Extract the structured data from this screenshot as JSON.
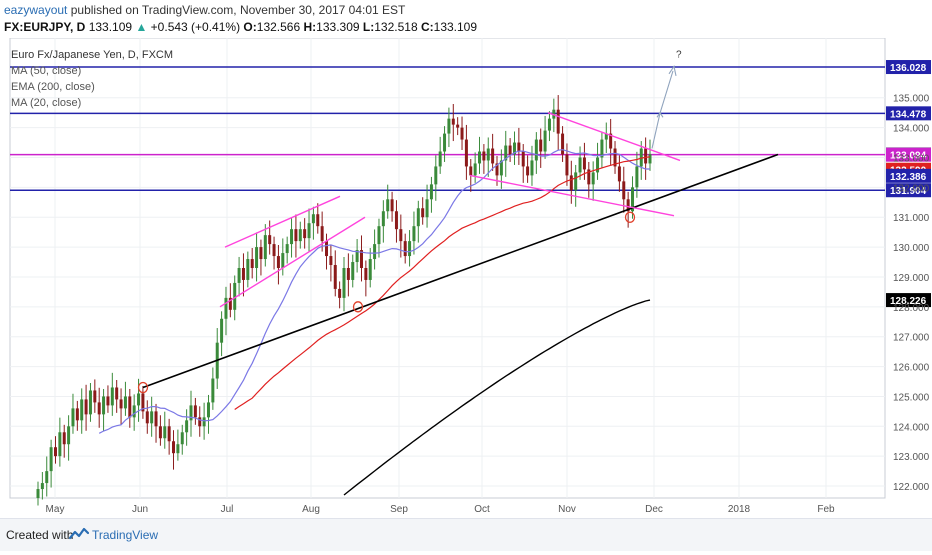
{
  "header": {
    "author": "eazywayout",
    "published": "published on TradingView.com, November 30, 2017 04:01 EST",
    "symbol": "FX:EURJPY, D",
    "last": "133.109",
    "change": "+0.543 (+0.41%)",
    "open_label": "O:",
    "open": "132.566",
    "high_label": "H:",
    "high": "133.309",
    "low_label": "L:",
    "low": "132.518",
    "close_label": "C:",
    "close": "133.109"
  },
  "legend": {
    "title": "Euro Fx/Japanese Yen, D, FXCM",
    "items": [
      "MA (50, close)",
      "EMA (200, close)",
      "MA (20, close)"
    ]
  },
  "annotation": {
    "question": "?"
  },
  "footer": {
    "created": "Created with",
    "brand": "TradingView"
  },
  "colors": {
    "up": "#3a8a3a",
    "down": "#8b1a1a",
    "ma50": "#e02020",
    "ema200": "#000000",
    "ma20": "#7b78e6",
    "hline_blue": "#2222aa",
    "hline_magenta": "#cc22cc",
    "pattern": "#ff44dd",
    "trendline": "#000000"
  },
  "chart_data": {
    "type": "candlestick",
    "title": "Euro Fx/Japanese Yen, D, FXCM",
    "y_range": [
      121.6,
      137.0
    ],
    "y_ticks": [
      "122.000",
      "123.000",
      "124.000",
      "125.000",
      "126.000",
      "127.000",
      "128.000",
      "129.000",
      "130.000",
      "131.000",
      "132.000",
      "133.000",
      "134.000",
      "135.000"
    ],
    "x_ticks": [
      "May",
      "Jun",
      "Jul",
      "Aug",
      "Sep",
      "Oct",
      "Nov",
      "Dec",
      "2018",
      "Feb"
    ],
    "price_labels": [
      {
        "value": 136.028,
        "label": "136.028",
        "color": "#2222aa"
      },
      {
        "value": 134.478,
        "label": "134.478",
        "color": "#2222aa"
      },
      {
        "value": 133.109,
        "label": "133.109",
        "color": "#9aa"
      },
      {
        "value": 133.094,
        "label": "133.094",
        "color": "#cc22cc"
      },
      {
        "value": 132.59,
        "label": "132.590",
        "color": "#e02020"
      },
      {
        "value": 132.386,
        "label": "132.386",
        "color": "#2222aa"
      },
      {
        "value": 131.904,
        "label": "131.904",
        "color": "#2222aa"
      },
      {
        "value": 128.226,
        "label": "128.226",
        "color": "#000000"
      }
    ],
    "horizontal_lines": [
      {
        "value": 136.028,
        "color": "#2222aa"
      },
      {
        "value": 134.478,
        "color": "#2222aa"
      },
      {
        "value": 133.094,
        "color": "#cc22cc"
      },
      {
        "value": 131.904,
        "color": "#2222aa"
      }
    ],
    "candles_close": [
      121.9,
      122.1,
      122.5,
      123.3,
      123.0,
      123.8,
      123.4,
      124.0,
      124.6,
      124.2,
      124.9,
      124.4,
      125.2,
      124.8,
      124.4,
      125.0,
      124.7,
      125.3,
      124.9,
      124.6,
      125.0,
      124.3,
      124.7,
      125.1,
      124.5,
      124.1,
      124.5,
      124.0,
      123.6,
      124.0,
      123.5,
      123.1,
      123.4,
      123.8,
      124.2,
      124.7,
      124.3,
      124.0,
      124.3,
      124.8,
      125.6,
      126.8,
      127.6,
      128.3,
      127.9,
      128.8,
      129.3,
      128.9,
      129.6,
      129.3,
      130.0,
      129.6,
      130.4,
      130.1,
      129.7,
      129.3,
      129.8,
      130.1,
      130.6,
      130.2,
      130.6,
      130.3,
      130.8,
      131.1,
      130.7,
      130.2,
      129.7,
      129.4,
      128.6,
      128.3,
      129.3,
      128.9,
      129.5,
      129.9,
      129.3,
      128.9,
      129.6,
      130.1,
      130.7,
      131.2,
      131.6,
      131.2,
      130.6,
      130.2,
      129.7,
      130.2,
      130.7,
      131.3,
      131.0,
      131.6,
      132.1,
      132.7,
      133.2,
      133.8,
      134.3,
      134.1,
      134.0,
      133.6,
      132.7,
      132.4,
      132.8,
      133.2,
      132.9,
      133.3,
      132.8,
      132.4,
      132.9,
      133.4,
      133.1,
      133.5,
      133.2,
      132.7,
      132.4,
      132.9,
      133.6,
      133.2,
      133.9,
      134.3,
      134.6,
      133.8,
      133.1,
      132.4,
      131.9,
      132.5,
      133.0,
      132.6,
      132.1,
      132.5,
      133.0,
      133.6,
      133.8,
      133.3,
      132.7,
      132.2,
      131.6,
      131.2,
      132.0,
      132.7,
      133.3,
      132.8,
      133.109
    ],
    "ma20_end": 133.094,
    "ma50_end": 132.59,
    "ema200_end": 128.226
  }
}
